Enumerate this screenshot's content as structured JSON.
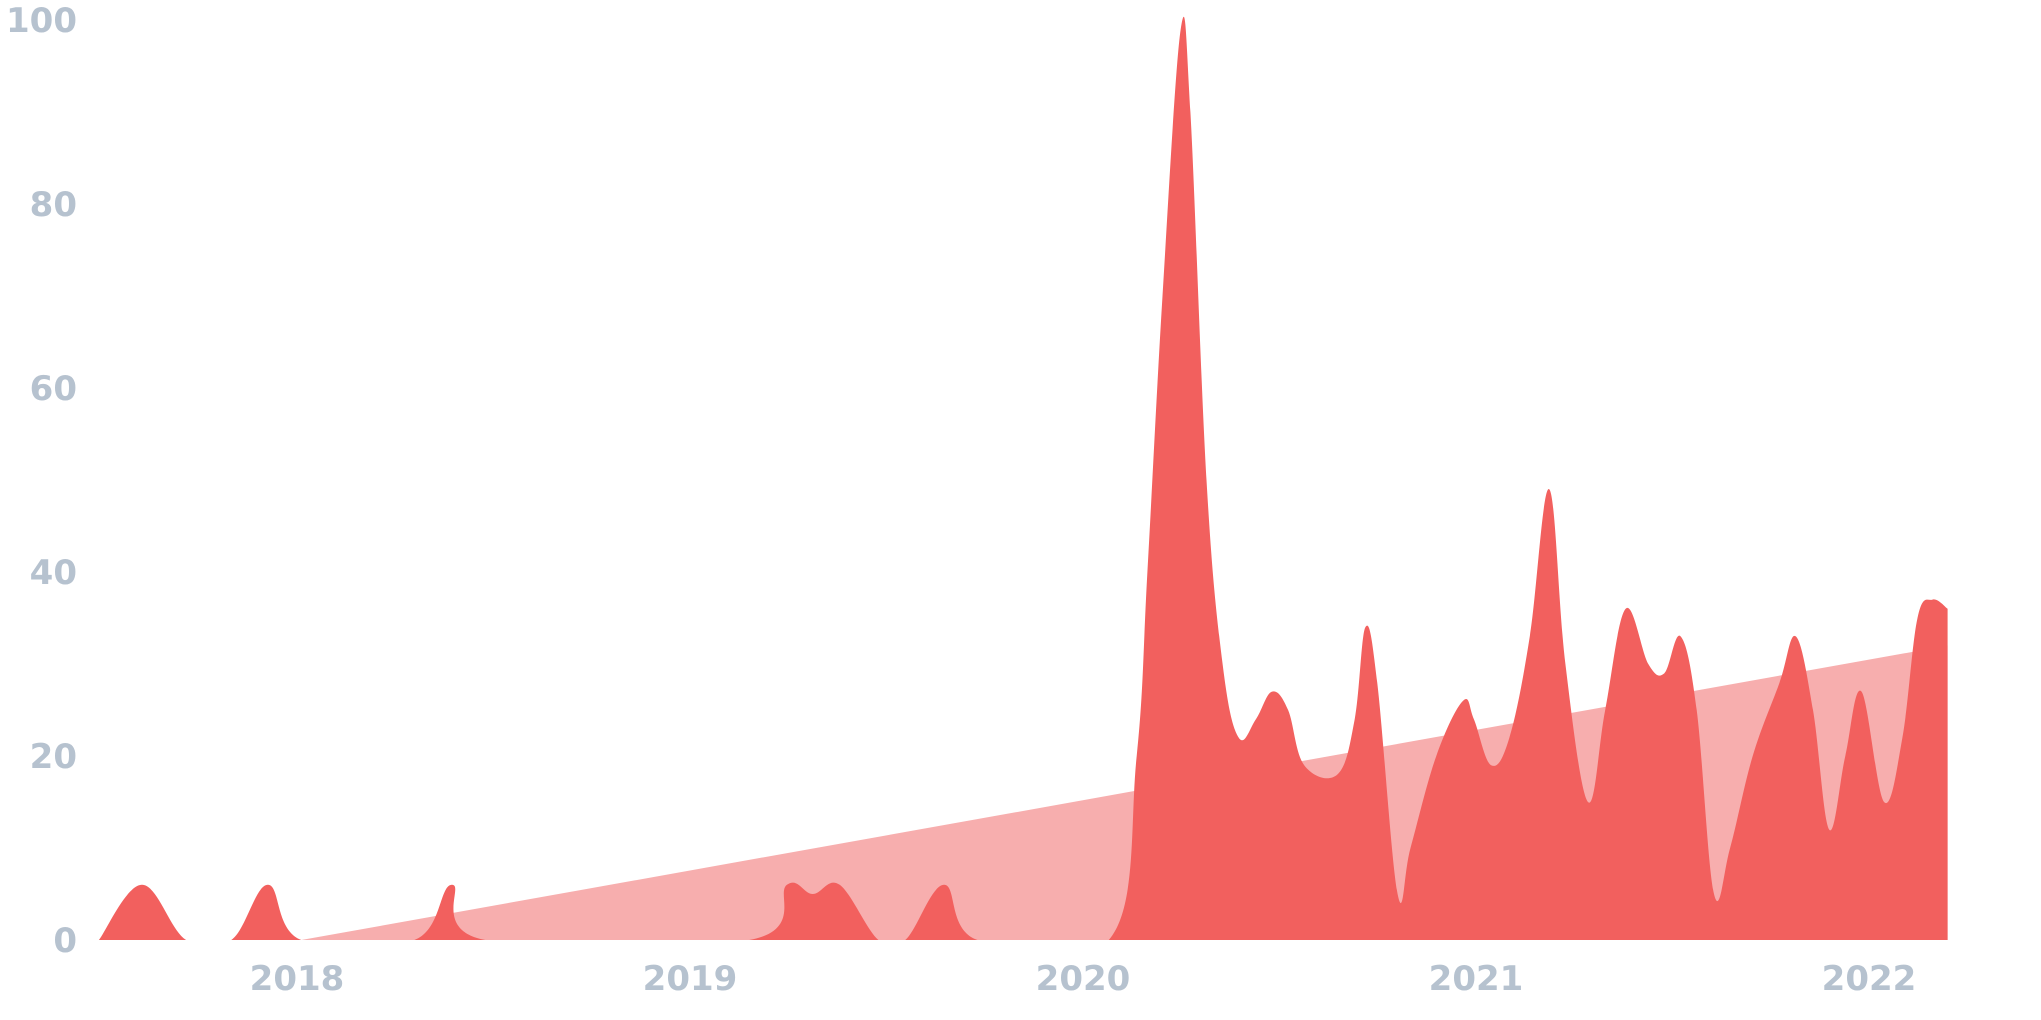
{
  "chart_data": {
    "type": "area",
    "title": "",
    "xlabel": "",
    "ylabel": "",
    "ylim": [
      0,
      100
    ],
    "y_ticks": [
      "0",
      "20",
      "40",
      "60",
      "80",
      "100"
    ],
    "x_ticks": [
      "2018",
      "2019",
      "2020",
      "2021",
      "2022"
    ],
    "grid": false,
    "legend": "none",
    "colors": {
      "series": "#f2605e",
      "trend": "#f7aeae",
      "tick_text": "#b6c2cf"
    },
    "series": [
      {
        "points": [
          [
            "2017-07-01",
            0
          ],
          [
            "2017-08-10",
            6
          ],
          [
            "2017-09-20",
            0
          ],
          [
            "2017-11-01",
            0
          ],
          [
            "2017-12-05",
            6
          ],
          [
            "2018-01-05",
            0
          ],
          [
            "2018-04-20",
            0
          ],
          [
            "2018-05-25",
            6
          ],
          [
            "2018-06-25",
            0
          ],
          [
            "2019-02-25",
            0
          ],
          [
            "2019-04-01",
            6
          ],
          [
            "2019-04-25",
            5
          ],
          [
            "2019-05-20",
            6
          ],
          [
            "2019-06-25",
            0
          ],
          [
            "2019-07-20",
            0
          ],
          [
            "2019-08-25",
            6
          ],
          [
            "2019-09-25",
            0
          ],
          [
            "2020-01-25",
            0
          ],
          [
            "2020-02-20",
            20
          ],
          [
            "2020-03-01",
            40
          ],
          [
            "2020-03-15",
            70
          ],
          [
            "2020-04-01",
            99
          ],
          [
            "2020-04-10",
            90
          ],
          [
            "2020-04-25",
            50
          ],
          [
            "2020-05-10",
            30
          ],
          [
            "2020-05-25",
            22
          ],
          [
            "2020-06-10",
            24
          ],
          [
            "2020-06-25",
            27
          ],
          [
            "2020-07-10",
            25
          ],
          [
            "2020-07-25",
            19
          ],
          [
            "2020-08-25",
            18
          ],
          [
            "2020-09-10",
            24
          ],
          [
            "2020-09-20",
            34
          ],
          [
            "2020-10-01",
            28
          ],
          [
            "2020-10-20",
            5
          ],
          [
            "2020-11-01",
            10
          ],
          [
            "2020-11-25",
            20
          ],
          [
            "2020-12-20",
            26
          ],
          [
            "2020-12-30",
            24
          ],
          [
            "2021-01-15",
            19
          ],
          [
            "2021-02-01",
            22
          ],
          [
            "2021-02-20",
            33
          ],
          [
            "2021-03-10",
            49
          ],
          [
            "2021-03-25",
            30
          ],
          [
            "2021-04-15",
            15
          ],
          [
            "2021-05-01",
            25
          ],
          [
            "2021-05-20",
            36
          ],
          [
            "2021-06-10",
            30
          ],
          [
            "2021-06-25",
            29
          ],
          [
            "2021-07-10",
            33
          ],
          [
            "2021-07-25",
            25
          ],
          [
            "2021-08-10",
            5
          ],
          [
            "2021-08-25",
            10
          ],
          [
            "2021-09-15",
            20
          ],
          [
            "2021-10-10",
            28
          ],
          [
            "2021-10-25",
            33
          ],
          [
            "2021-11-10",
            25
          ],
          [
            "2021-11-25",
            12
          ],
          [
            "2021-12-10",
            20
          ],
          [
            "2021-12-25",
            27
          ],
          [
            "2022-01-15",
            15
          ],
          [
            "2022-02-01",
            22
          ],
          [
            "2022-02-15",
            35
          ],
          [
            "2022-03-01",
            37
          ],
          [
            "2022-03-15",
            36
          ]
        ]
      },
      {
        "kind": "trend",
        "points": [
          [
            "2018-01-05",
            0
          ],
          [
            "2022-03-15",
            32
          ]
        ]
      }
    ]
  }
}
